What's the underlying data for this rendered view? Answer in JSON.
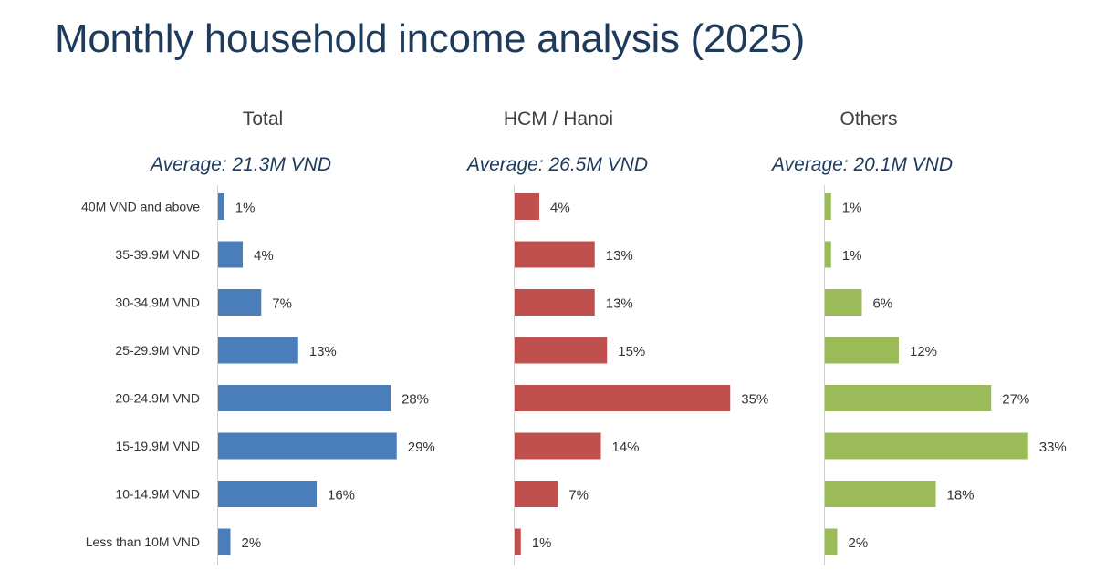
{
  "page": {
    "title": "Monthly household income analysis (2025)"
  },
  "chart_data": {
    "type": "bar",
    "orientation": "horizontal",
    "unit": "%",
    "categories": [
      "40M VND and above",
      "35-39.9M VND",
      "30-34.9M VND",
      "25-29.9M VND",
      "20-24.9M VND",
      "15-19.9M VND",
      "10-14.9M VND",
      "Less than 10M VND"
    ],
    "panels": [
      {
        "title": "Total",
        "subtitle": "Average: 21.3M VND",
        "color": "#4a7ebb",
        "values": [
          1,
          4,
          7,
          13,
          28,
          29,
          16,
          2
        ]
      },
      {
        "title": "HCM / Hanoi",
        "subtitle": "Average: 26.5M VND",
        "color": "#c0504d",
        "values": [
          4,
          13,
          13,
          15,
          35,
          14,
          7,
          1
        ]
      },
      {
        "title": "Others",
        "subtitle": "Average: 20.1M VND",
        "color": "#9bbb59",
        "values": [
          1,
          1,
          6,
          12,
          27,
          33,
          18,
          2
        ]
      }
    ]
  }
}
